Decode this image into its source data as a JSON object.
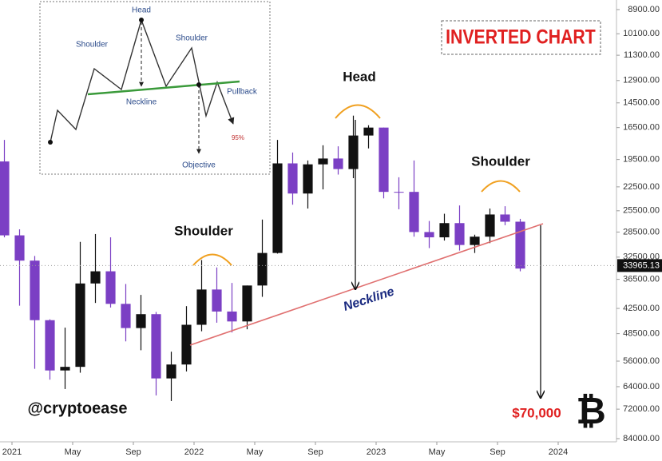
{
  "chart_data": {
    "type": "candlestick",
    "title": "INVERTED CHART",
    "x": [
      "2020-12",
      "2021-01",
      "2021-02",
      "2021-03",
      "2021-04",
      "2021-05",
      "2021-06",
      "2021-07",
      "2021-08",
      "2021-09",
      "2021-10",
      "2021-11",
      "2021-12",
      "2022-01",
      "2022-02",
      "2022-03",
      "2022-04",
      "2022-05",
      "2022-06",
      "2022-07",
      "2022-08",
      "2022-09",
      "2022-10",
      "2022-11",
      "2022-12",
      "2023-01",
      "2023-02",
      "2023-03",
      "2023-04",
      "2023-05",
      "2023-06",
      "2023-07",
      "2023-08",
      "2023-09",
      "2023-10"
    ],
    "open": [
      19700,
      29000,
      33100,
      45200,
      58800,
      57700,
      37300,
      35000,
      41500,
      47100,
      43800,
      61300,
      57000,
      46300,
      38500,
      43200,
      45500,
      37700,
      31800,
      19900,
      23300,
      20000,
      19400,
      20500,
      17200,
      16500,
      23100,
      23100,
      28500,
      29300,
      27200,
      30500,
      29200,
      26000,
      27000
    ],
    "high": [
      29300,
      41900,
      58300,
      61700,
      64800,
      59500,
      41300,
      42300,
      50500,
      52900,
      67000,
      69000,
      59100,
      47900,
      45800,
      48200,
      47400,
      40000,
      31900,
      24700,
      25200,
      22800,
      21100,
      21500,
      18400,
      23900,
      25300,
      29200,
      31000,
      29800,
      31400,
      31800,
      30200,
      27500,
      35000
    ],
    "low": [
      17600,
      28100,
      32300,
      45000,
      47000,
      30000,
      28800,
      29300,
      37400,
      39600,
      43300,
      53300,
      42000,
      33000,
      34300,
      37200,
      37700,
      26700,
      17600,
      18800,
      19600,
      18100,
      18200,
      15500,
      16300,
      16500,
      21400,
      19600,
      26900,
      25900,
      24800,
      28900,
      25200,
      24900,
      26600
    ],
    "close": [
      29000,
      33100,
      45200,
      58800,
      57700,
      37300,
      35000,
      41500,
      47100,
      43800,
      61300,
      57000,
      46300,
      38500,
      43200,
      45500,
      37700,
      31800,
      19900,
      23300,
      20000,
      19400,
      20500,
      17200,
      16500,
      23100,
      23100,
      28500,
      29300,
      27200,
      30500,
      29200,
      26000,
      27000,
      34500
    ],
    "up_color": "#7b3fc4",
    "down_color": "#111111",
    "log_scale": true,
    "grid": false,
    "xlim": [
      "2020-12",
      "2024-04"
    ],
    "xticks": [
      {
        "value": "2021-01",
        "label": "2021"
      },
      {
        "value": "2021-05",
        "label": "May"
      },
      {
        "value": "2021-09",
        "label": "Sep"
      },
      {
        "value": "2022-01",
        "label": "2022"
      },
      {
        "value": "2022-05",
        "label": "May"
      },
      {
        "value": "2022-09",
        "label": "Sep"
      },
      {
        "value": "2023-01",
        "label": "2023"
      },
      {
        "value": "2023-05",
        "label": "May"
      },
      {
        "value": "2023-09",
        "label": "Sep"
      },
      {
        "value": "2024-01",
        "label": "2024"
      }
    ],
    "ylim": [
      84000,
      8900
    ],
    "yticks": [
      {
        "value": 8900,
        "label": "8900.00"
      },
      {
        "value": 10100,
        "label": "10100.00"
      },
      {
        "value": 11300,
        "label": "11300.00"
      },
      {
        "value": 12900,
        "label": "12900.00"
      },
      {
        "value": 14500,
        "label": "14500.00"
      },
      {
        "value": 16500,
        "label": "16500.00"
      },
      {
        "value": 19500,
        "label": "19500.00"
      },
      {
        "value": 22500,
        "label": "22500.00"
      },
      {
        "value": 25500,
        "label": "25500.00"
      },
      {
        "value": 28500,
        "label": "28500.00"
      },
      {
        "value": 32500,
        "label": "32500.00"
      },
      {
        "value": 36500,
        "label": "36500.00"
      },
      {
        "value": 42500,
        "label": "42500.00"
      },
      {
        "value": 48500,
        "label": "48500.00"
      },
      {
        "value": 56000,
        "label": "56000.00"
      },
      {
        "value": 64000,
        "label": "64000.00"
      },
      {
        "value": 72000,
        "label": "72000.00"
      },
      {
        "value": 84000,
        "label": "84000.00"
      }
    ],
    "last_price": {
      "value": 33965.13,
      "label": "33965.13"
    },
    "annotations": {
      "head": "Head",
      "left_shoulder": "Shoulder",
      "right_shoulder": "Shoulder",
      "neckline": "Neckline",
      "target": "$70,000",
      "handle": "@cryptoease",
      "logo": "₿"
    },
    "inset": {
      "head": "Head",
      "left_shoulder": "Shoulder",
      "right_shoulder": "Shoulder",
      "neckline": "Neckline",
      "pullback": "Pullback",
      "objective": "Objective",
      "percent": "95%"
    }
  }
}
